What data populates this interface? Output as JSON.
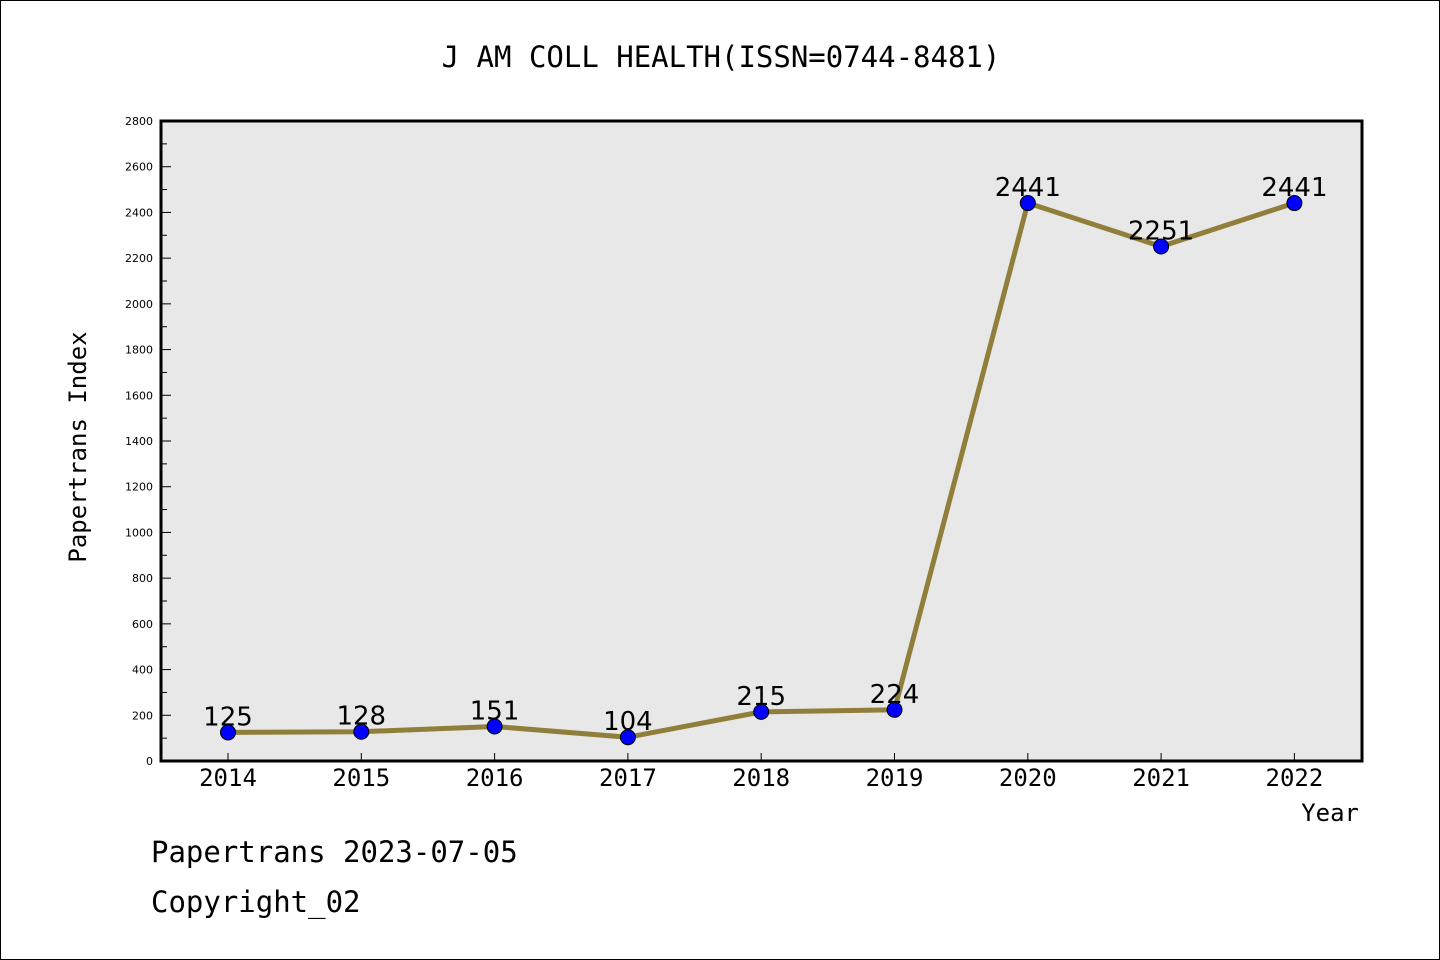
{
  "chart_data": {
    "type": "line",
    "title": "J AM COLL HEALTH(ISSN=0744-8481)",
    "xlabel": "Year",
    "ylabel": "Papertrans Index",
    "categories": [
      "2014",
      "2015",
      "2016",
      "2017",
      "2018",
      "2019",
      "2020",
      "2021",
      "2022"
    ],
    "series": [
      {
        "values": [
          125,
          128,
          151,
          104,
          215,
          224,
          2441,
          2251,
          2441
        ]
      }
    ],
    "data_labels": [
      "125",
      "128",
      "151",
      "104",
      "215",
      "224",
      "2441",
      "2251",
      "2441"
    ],
    "ylim": [
      0,
      2800
    ],
    "yticks": [
      "0",
      "200",
      "400",
      "600",
      "800",
      "1000",
      "1200",
      "1400",
      "1600",
      "1800",
      "2000",
      "2200",
      "2400",
      "2600",
      "2800"
    ],
    "grid": false,
    "plot_background": "#e8e8e8",
    "line_color": "#8f7f3a",
    "marker_color": "#0000ff"
  },
  "footer": {
    "line1": "Papertrans 2023-07-05",
    "line2": "Copyright_02"
  }
}
